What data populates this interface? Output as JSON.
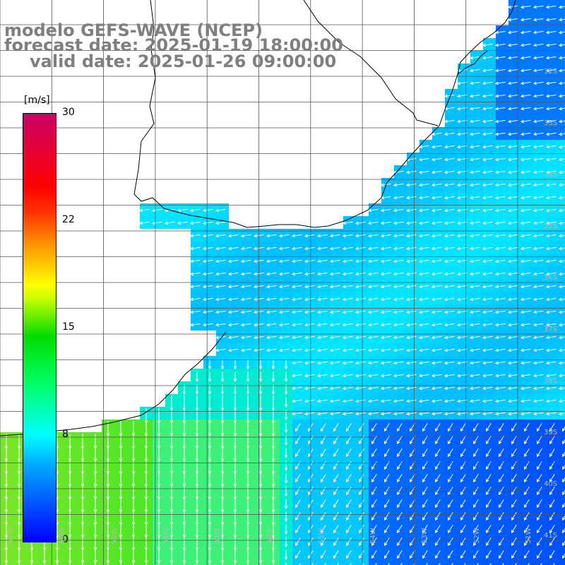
{
  "title": {
    "line1": "modelo GEFS-WAVE (NCEP)",
    "line2": "forecast date: 2025-01-19 18:00:00",
    "line3": "valid date: 2025-01-26 09:00:00"
  },
  "colorbar": {
    "unit": "[m/s]",
    "min": 0,
    "max": 30,
    "ticks": [
      "30",
      "22",
      "15",
      "8",
      "0"
    ],
    "colors": [
      "#0000ff",
      "#00aaff",
      "#00ffff",
      "#00ff66",
      "#00dd00",
      "#ccff00",
      "#ffff00",
      "#ff9900",
      "#ff3300",
      "#ff0000",
      "#cc0066"
    ]
  },
  "lon_labels": [
    "61W",
    "60W",
    "59W",
    "58W",
    "57W",
    "56W",
    "55W",
    "54W",
    "53W",
    "52W",
    "51W"
  ],
  "lat_labels": [
    "32S",
    "33S",
    "34S",
    "35S",
    "36S",
    "37S",
    "38S",
    "39S",
    "40S",
    "41S"
  ],
  "colors": {
    "land": "#ffffff",
    "coast": "#000000",
    "grid": "#555555",
    "arrow": "#ffffff"
  }
}
